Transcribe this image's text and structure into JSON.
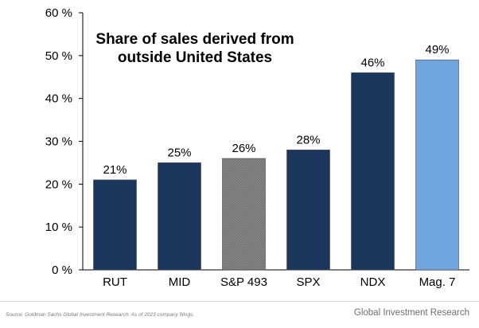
{
  "chart_data": {
    "type": "bar",
    "title_lines": [
      "Share of sales derived from",
      "outside United States"
    ],
    "categories": [
      "RUT",
      "MID",
      "S&P 493",
      "SPX",
      "NDX",
      "Mag. 7"
    ],
    "values": [
      21,
      25,
      26,
      28,
      46,
      49
    ],
    "data_labels": [
      "21%",
      "25%",
      "26%",
      "28%",
      "46%",
      "49%"
    ],
    "bar_colors": [
      "#1b365d",
      "#1b365d",
      "#7f7f7f",
      "#1b365d",
      "#1b365d",
      "#6fa6e0"
    ],
    "bar_patterns": [
      null,
      null,
      "hatched",
      null,
      null,
      null
    ],
    "y_ticks": [
      0,
      10,
      20,
      30,
      40,
      50,
      60
    ],
    "y_tick_labels": [
      "0 %",
      "10 %",
      "20 %",
      "30 %",
      "40 %",
      "50 %",
      "60 %"
    ],
    "ylim": [
      0,
      60
    ],
    "xlabel": "",
    "ylabel": "",
    "grid": false
  },
  "footer": {
    "source": "Source: Goldman Sachs Global Investment Research. As of 2023 company filings.",
    "brand": "Global Investment Research"
  }
}
